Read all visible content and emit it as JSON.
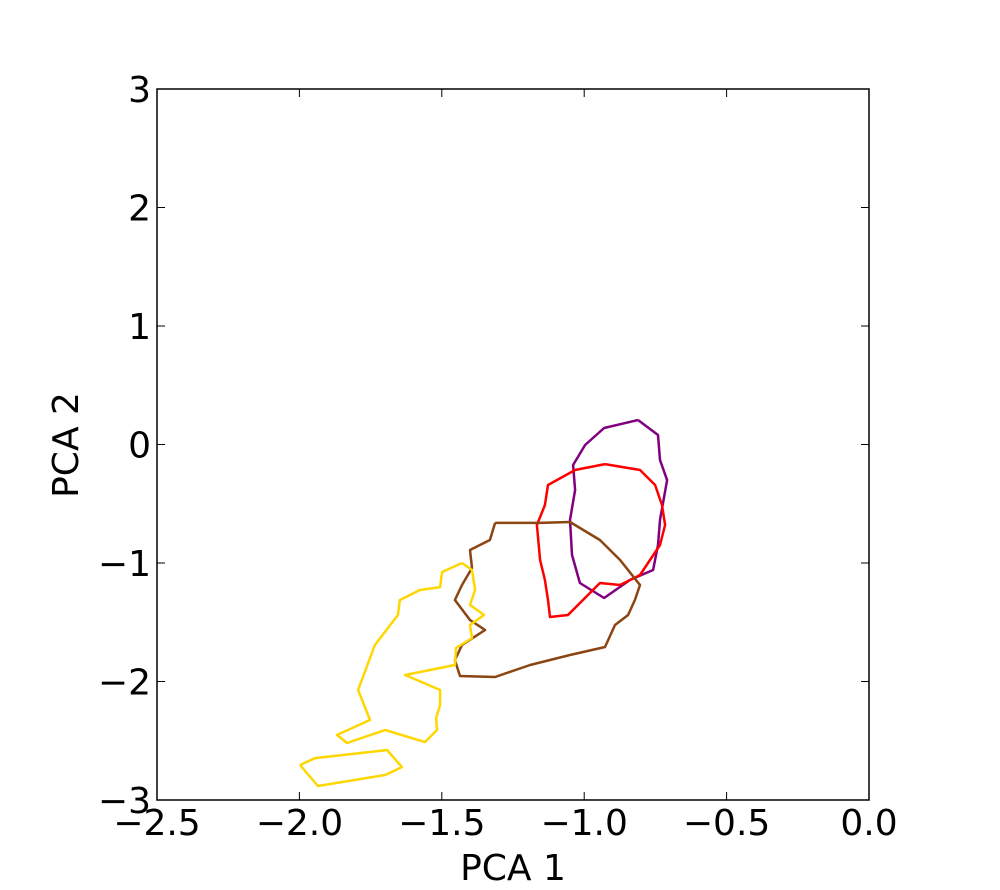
{
  "chart_data": {
    "type": "line",
    "xlabel": "PCA 1",
    "ylabel": "PCA 2",
    "xlim": [
      -2.5,
      0
    ],
    "ylim": [
      -3,
      3
    ],
    "xticks": [
      {
        "value": -2.5,
        "label": "−2.5"
      },
      {
        "value": -2.0,
        "label": "−2.0"
      },
      {
        "value": -1.5,
        "label": "−1.5"
      },
      {
        "value": -1.0,
        "label": "−1.0"
      },
      {
        "value": -0.5,
        "label": "−0.5"
      },
      {
        "value": 0,
        "label": "0.0"
      }
    ],
    "yticks": [
      {
        "value": -3,
        "label": "−3"
      },
      {
        "value": -2,
        "label": "−2"
      },
      {
        "value": -1,
        "label": "−1"
      },
      0,
      1,
      2,
      3
    ],
    "series": [
      {
        "color": "#800080",
        "x": [
          -0.811,
          -0.741,
          -0.734,
          -0.709,
          -0.734,
          -0.741,
          -0.758,
          -0.839,
          -0.93,
          -1.015,
          -1.043,
          -1.05,
          -1.032,
          -1.039,
          -0.997,
          -0.93,
          -0.811
        ],
        "values": [
          0.207,
          0.08,
          -0.131,
          -0.3,
          -0.637,
          -0.848,
          -1.059,
          -1.143,
          -1.295,
          -1.169,
          -0.932,
          -0.637,
          -0.384,
          -0.173,
          -0.004,
          0.139,
          0.207
        ]
      },
      {
        "color": "#ff0000",
        "x": [
          -0.927,
          -0.804,
          -0.751,
          -0.727,
          -0.716,
          -0.734,
          -0.804,
          -0.874,
          -0.945,
          -1.057,
          -1.12,
          -1.127,
          -1.138,
          -1.155,
          -1.166,
          -1.138,
          -1.127,
          -1.032,
          -0.927
        ],
        "values": [
          -0.165,
          -0.215,
          -0.342,
          -0.511,
          -0.679,
          -0.848,
          -1.101,
          -1.186,
          -1.169,
          -1.439,
          -1.456,
          -1.312,
          -1.143,
          -0.975,
          -0.679,
          -0.511,
          -0.342,
          -0.215,
          -0.165
        ]
      },
      {
        "color": "#8b4513",
        "x": [
          -1.313,
          -1.155,
          -1.05,
          -0.945,
          -0.874,
          -0.804,
          -0.822,
          -0.846,
          -0.892,
          -0.927,
          -1.05,
          -1.19,
          -1.313,
          -1.436,
          -1.454,
          -1.429,
          -1.348,
          -1.401,
          -1.454,
          -1.429,
          -1.394,
          -1.401,
          -1.331,
          -1.313
        ],
        "values": [
          -0.662,
          -0.662,
          -0.654,
          -0.806,
          -0.975,
          -1.186,
          -1.312,
          -1.439,
          -1.523,
          -1.709,
          -1.776,
          -1.861,
          -1.962,
          -1.954,
          -1.819,
          -1.692,
          -1.565,
          -1.481,
          -1.312,
          -1.186,
          -1.042,
          -0.89,
          -0.806,
          -0.662
        ]
      },
      {
        "color": "#ffd700",
        "x": [
          -1.429,
          -1.394,
          -1.383,
          -1.401,
          -1.352,
          -1.401,
          -1.394,
          -1.45,
          -1.454,
          -1.629,
          -1.506,
          -1.506,
          -1.52,
          -1.517,
          -1.559,
          -1.699,
          -1.833,
          -1.868,
          -1.752,
          -1.794,
          -1.735,
          -1.654,
          -1.647,
          -1.577,
          -1.506,
          -1.499,
          -1.429,
          null,
          -1.998,
          -1.945,
          -1.692,
          -1.64,
          -1.699,
          -1.935,
          -1.998
        ],
        "values": [
          -1.0,
          -1.059,
          -1.228,
          -1.354,
          -1.439,
          -1.523,
          -1.633,
          -1.717,
          -1.861,
          -1.945,
          -2.072,
          -2.198,
          -2.308,
          -2.409,
          -2.511,
          -2.409,
          -2.519,
          -2.451,
          -2.325,
          -2.072,
          -1.692,
          -1.439,
          -1.312,
          -1.228,
          -1.203,
          -1.076,
          -1.0,
          null,
          -2.705,
          -2.646,
          -2.578,
          -2.722,
          -2.789,
          -2.882,
          -2.705
        ]
      }
    ]
  }
}
